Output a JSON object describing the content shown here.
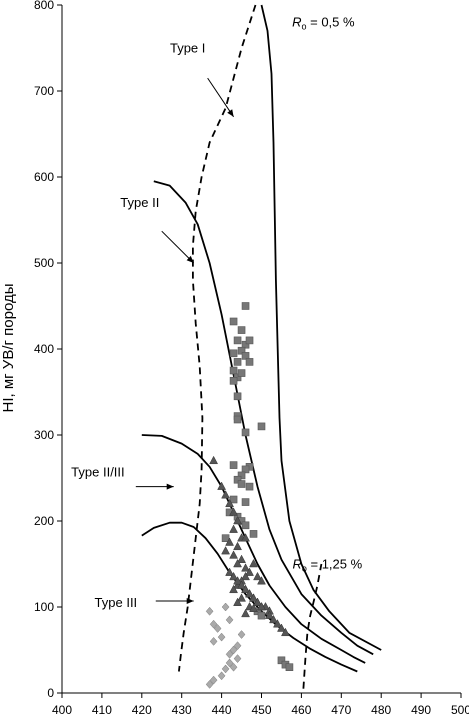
{
  "chart_data": {
    "type": "scatter",
    "title": "",
    "xlabel": "",
    "ylabel": "HI, мг УВ/г породы",
    "xlim": [
      400,
      500
    ],
    "ylim": [
      0,
      800
    ],
    "x_ticks": [
      400,
      410,
      420,
      430,
      440,
      450,
      460,
      470,
      480,
      490,
      500
    ],
    "y_ticks": [
      0,
      100,
      200,
      300,
      400,
      500,
      600,
      700,
      800
    ],
    "grid": false,
    "curves": [
      {
        "label": "Type I",
        "style": "solid",
        "x": [
          450,
          451.5,
          452.5,
          453,
          453.3,
          453.6,
          454.5,
          455,
          457,
          460,
          463,
          467,
          472,
          480
        ],
        "y": [
          800,
          770,
          720,
          640,
          560,
          480,
          320,
          270,
          200,
          150,
          120,
          95,
          70,
          50
        ]
      },
      {
        "label": "Type II",
        "style": "solid",
        "x": [
          423,
          427,
          431,
          434,
          437,
          440,
          443,
          446,
          449,
          452,
          455,
          460,
          465,
          470,
          474,
          478
        ],
        "y": [
          595,
          590,
          570,
          545,
          500,
          440,
          370,
          300,
          240,
          190,
          155,
          115,
          90,
          70,
          55,
          45
        ]
      },
      {
        "label": "Type II/III",
        "style": "solid",
        "x": [
          420,
          425,
          430,
          434,
          437,
          440,
          443,
          446,
          449,
          452,
          456,
          460,
          465,
          470,
          473,
          476
        ],
        "y": [
          300,
          299,
          290,
          278,
          263,
          240,
          210,
          180,
          150,
          125,
          100,
          80,
          63,
          50,
          42,
          35
        ]
      },
      {
        "label": "Type III",
        "style": "solid",
        "x": [
          420,
          423,
          427,
          430,
          433,
          436,
          439,
          442,
          446,
          450,
          454,
          458,
          462,
          466,
          470,
          474
        ],
        "y": [
          183,
          192,
          198,
          198,
          193,
          180,
          162,
          140,
          115,
          95,
          78,
          64,
          52,
          42,
          33,
          25
        ]
      },
      {
        "label": "Ro = 0,5 %",
        "style": "dashed",
        "x": [
          448.5,
          445,
          441,
          437,
          435,
          433.5,
          432.8,
          432.8,
          433.5,
          434.5,
          435.2,
          435,
          434.5,
          433.5,
          432.5,
          431.5,
          430.5,
          429.8,
          429.3
        ],
        "y": [
          800,
          750,
          680,
          640,
          600,
          560,
          520,
          480,
          430,
          380,
          320,
          260,
          220,
          180,
          140,
          100,
          70,
          45,
          25
        ]
      },
      {
        "label": "Ro = 1,25 %",
        "style": "dashed",
        "x": [
          460.5,
          461,
          461.5,
          462.2,
          463,
          464,
          465
        ],
        "y": [
          5,
          40,
          70,
          90,
          105,
          125,
          150
        ]
      }
    ],
    "series": [
      {
        "marker": "square",
        "color": "#777777",
        "x": [
          446,
          443,
          445,
          444,
          446,
          447,
          445,
          443,
          444,
          446,
          447,
          443,
          444,
          445,
          443,
          444,
          450,
          444,
          446,
          444,
          443,
          447,
          446,
          445,
          444,
          445,
          447,
          446,
          443,
          444,
          445,
          446,
          448,
          455,
          456,
          457,
          449,
          450,
          441,
          442
        ],
        "y": [
          450,
          432,
          422,
          410,
          405,
          410,
          398,
          395,
          385,
          392,
          385,
          375,
          367,
          372,
          363,
          345,
          310,
          322,
          303,
          318,
          265,
          263,
          260,
          253,
          248,
          243,
          240,
          222,
          225,
          205,
          200,
          195,
          185,
          38,
          33,
          30,
          95,
          90,
          180,
          210
        ]
      },
      {
        "marker": "triangle",
        "color": "#555555",
        "x": [
          438,
          440,
          441,
          442,
          443,
          444,
          443,
          445,
          442,
          446,
          444,
          441,
          443,
          445,
          444,
          446,
          448,
          447,
          449,
          450,
          446,
          445,
          444,
          443,
          446,
          447,
          448,
          449,
          450,
          451,
          452,
          452,
          453,
          454,
          455,
          456,
          445,
          444,
          447,
          448,
          446,
          442,
          443,
          444,
          445,
          446,
          447,
          448,
          449,
          450
        ],
        "y": [
          270,
          240,
          230,
          220,
          210,
          200,
          190,
          180,
          175,
          180,
          170,
          165,
          160,
          155,
          150,
          145,
          150,
          140,
          135,
          130,
          135,
          130,
          125,
          120,
          120,
          115,
          110,
          105,
          100,
          100,
          95,
          90,
          85,
          80,
          75,
          70,
          110,
          105,
          100,
          98,
          92,
          140,
          135,
          130,
          125,
          120,
          115,
          110,
          105,
          100
        ]
      },
      {
        "marker": "diamond",
        "color": "#aaaaaa",
        "x": [
          437,
          438,
          439,
          441,
          440,
          438,
          443,
          442,
          444,
          442,
          441,
          440,
          438,
          437,
          444,
          445,
          443,
          442
        ],
        "y": [
          95,
          80,
          75,
          100,
          65,
          60,
          50,
          45,
          40,
          35,
          28,
          20,
          15,
          10,
          55,
          68,
          30,
          85
        ]
      }
    ]
  },
  "annotations": [
    {
      "text": "Type I",
      "x": 431.5,
      "y": 745
    },
    {
      "text": "Type II",
      "x": 419.5,
      "y": 565
    },
    {
      "text": "Type II/III",
      "x": 409,
      "y": 252
    },
    {
      "text": "Type III",
      "x": 413.5,
      "y": 100
    },
    {
      "text": "Ro = 0,5 %",
      "x": 465.5,
      "y": 775
    },
    {
      "text": "Ro = 1,25 %",
      "x": 466.5,
      "y": 145
    }
  ],
  "arrows": [
    {
      "from": [
        436.5,
        715
      ],
      "to": [
        443,
        670
      ]
    },
    {
      "from": [
        425,
        537
      ],
      "to": [
        433,
        500
      ]
    },
    {
      "from": [
        418.5,
        240
      ],
      "to": [
        428,
        240
      ]
    },
    {
      "from": [
        423.5,
        107
      ],
      "to": [
        433,
        107
      ]
    }
  ]
}
